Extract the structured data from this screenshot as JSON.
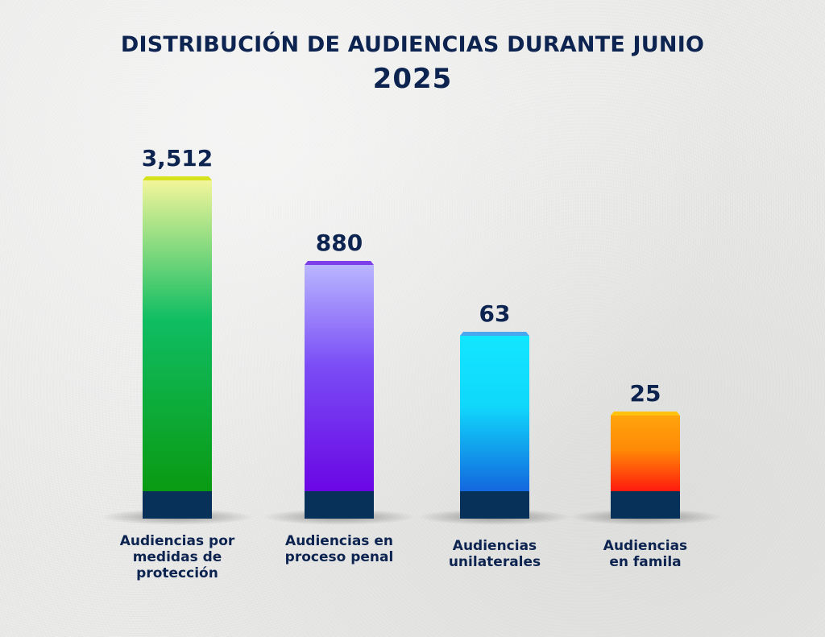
{
  "chart_data": {
    "type": "bar",
    "title": "DISTRIBUCIÓN DE AUDIENCIAS DURANTE JUNIO",
    "subtitle": "2025",
    "categories": [
      "Audiencias por\nmedidas de\nprotección",
      "Audiencias en\nproceso penal",
      "Audiencias\nunilaterales",
      "Audiencias\nen famila"
    ],
    "values": [
      3512,
      880,
      63,
      25
    ],
    "value_labels": [
      "3,512",
      "880",
      "63",
      "25"
    ],
    "xlabel": "",
    "ylabel": "",
    "grid": false,
    "legend": "none",
    "bar_colors": [
      {
        "top": "#f3f59a",
        "mid": "#0fbd62",
        "bottom": "#0a9a12",
        "cap": "#d6e21c"
      },
      {
        "top": "#b9b6ff",
        "mid": "#7a4cf5",
        "bottom": "#6a06e4",
        "cap": "#7c3fe8"
      },
      {
        "top": "#12e6ff",
        "mid": "#10d8fb",
        "bottom": "#1367df",
        "cap": "#49a7f0"
      },
      {
        "top": "#ffa40c",
        "mid": "#ff8a06",
        "bottom": "#ff1a0e",
        "cap": "#ffc20e"
      }
    ],
    "base_color": "#073158",
    "text_color": "#0d2450"
  }
}
